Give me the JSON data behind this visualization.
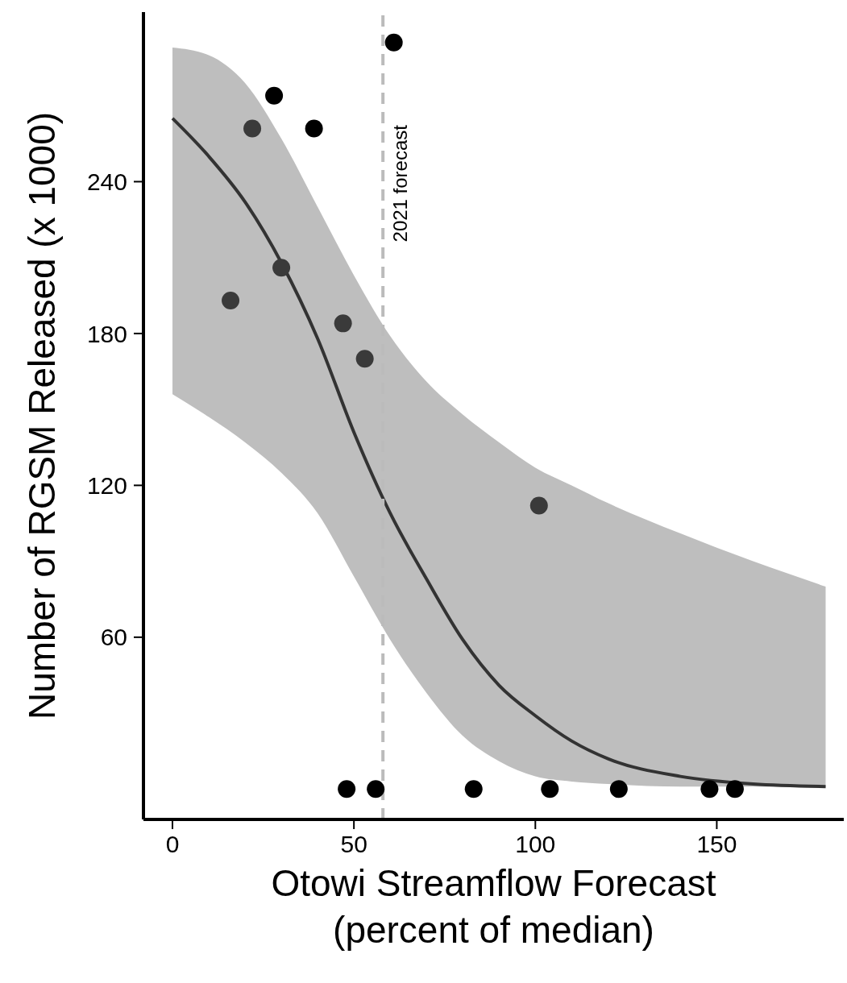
{
  "chart_data": {
    "type": "scatter",
    "xlabel": "Otowi Streamflow Forecast\n(percent of median)",
    "ylabel": "Number of RGSM Released (x 1000)",
    "xlim": [
      -8,
      185
    ],
    "xticks": [
      0,
      50,
      100,
      150
    ],
    "ylim": [
      -12,
      307
    ],
    "yticks": [
      60,
      120,
      180,
      240
    ],
    "grid": false,
    "legend": false,
    "marker": "circle",
    "series": [
      {
        "type": "line",
        "marker": "none",
        "color": "#333333",
        "x": [
          0,
          10,
          20,
          30,
          40,
          50,
          60,
          70,
          80,
          90,
          100,
          110,
          120,
          140,
          160,
          180
        ],
        "values": [
          265,
          250,
          232,
          208,
          178,
          141,
          109,
          83,
          59,
          41,
          29,
          19,
          12,
          5,
          2,
          1
        ],
        "upper": [
          293,
          290,
          279,
          257,
          230,
          203,
          179,
          161,
          148,
          137,
          127,
          120,
          113,
          101,
          90,
          80
        ],
        "lower": [
          156,
          147,
          137,
          125,
          109,
          84,
          59,
          38,
          21,
          11,
          5,
          3,
          2,
          1,
          1,
          0.5
        ]
      },
      {
        "color": "#000000",
        "x": [
          61,
          28,
          22,
          39,
          30,
          16,
          47,
          53,
          101,
          48,
          56,
          83,
          104,
          123,
          148,
          155
        ],
        "values": [
          295,
          274,
          261,
          261,
          206,
          193,
          184,
          170,
          112,
          0,
          0,
          0,
          0,
          0,
          0,
          0
        ],
        "colors": [
          "#000000",
          "#000000",
          "#3a3a3a",
          "#000000",
          "#3a3a3a",
          "#3a3a3a",
          "#3a3a3a",
          "#3a3a3a",
          "#3a3a3a",
          "#000000",
          "#000000",
          "#000000",
          "#000000",
          "#000000",
          "#000000",
          "#000000"
        ]
      }
    ],
    "ref_lines": [
      {
        "axis": "x",
        "value": 58,
        "label": "2021 forecast",
        "color": "#bbbbbb",
        "line_style": "dashed"
      }
    ]
  }
}
